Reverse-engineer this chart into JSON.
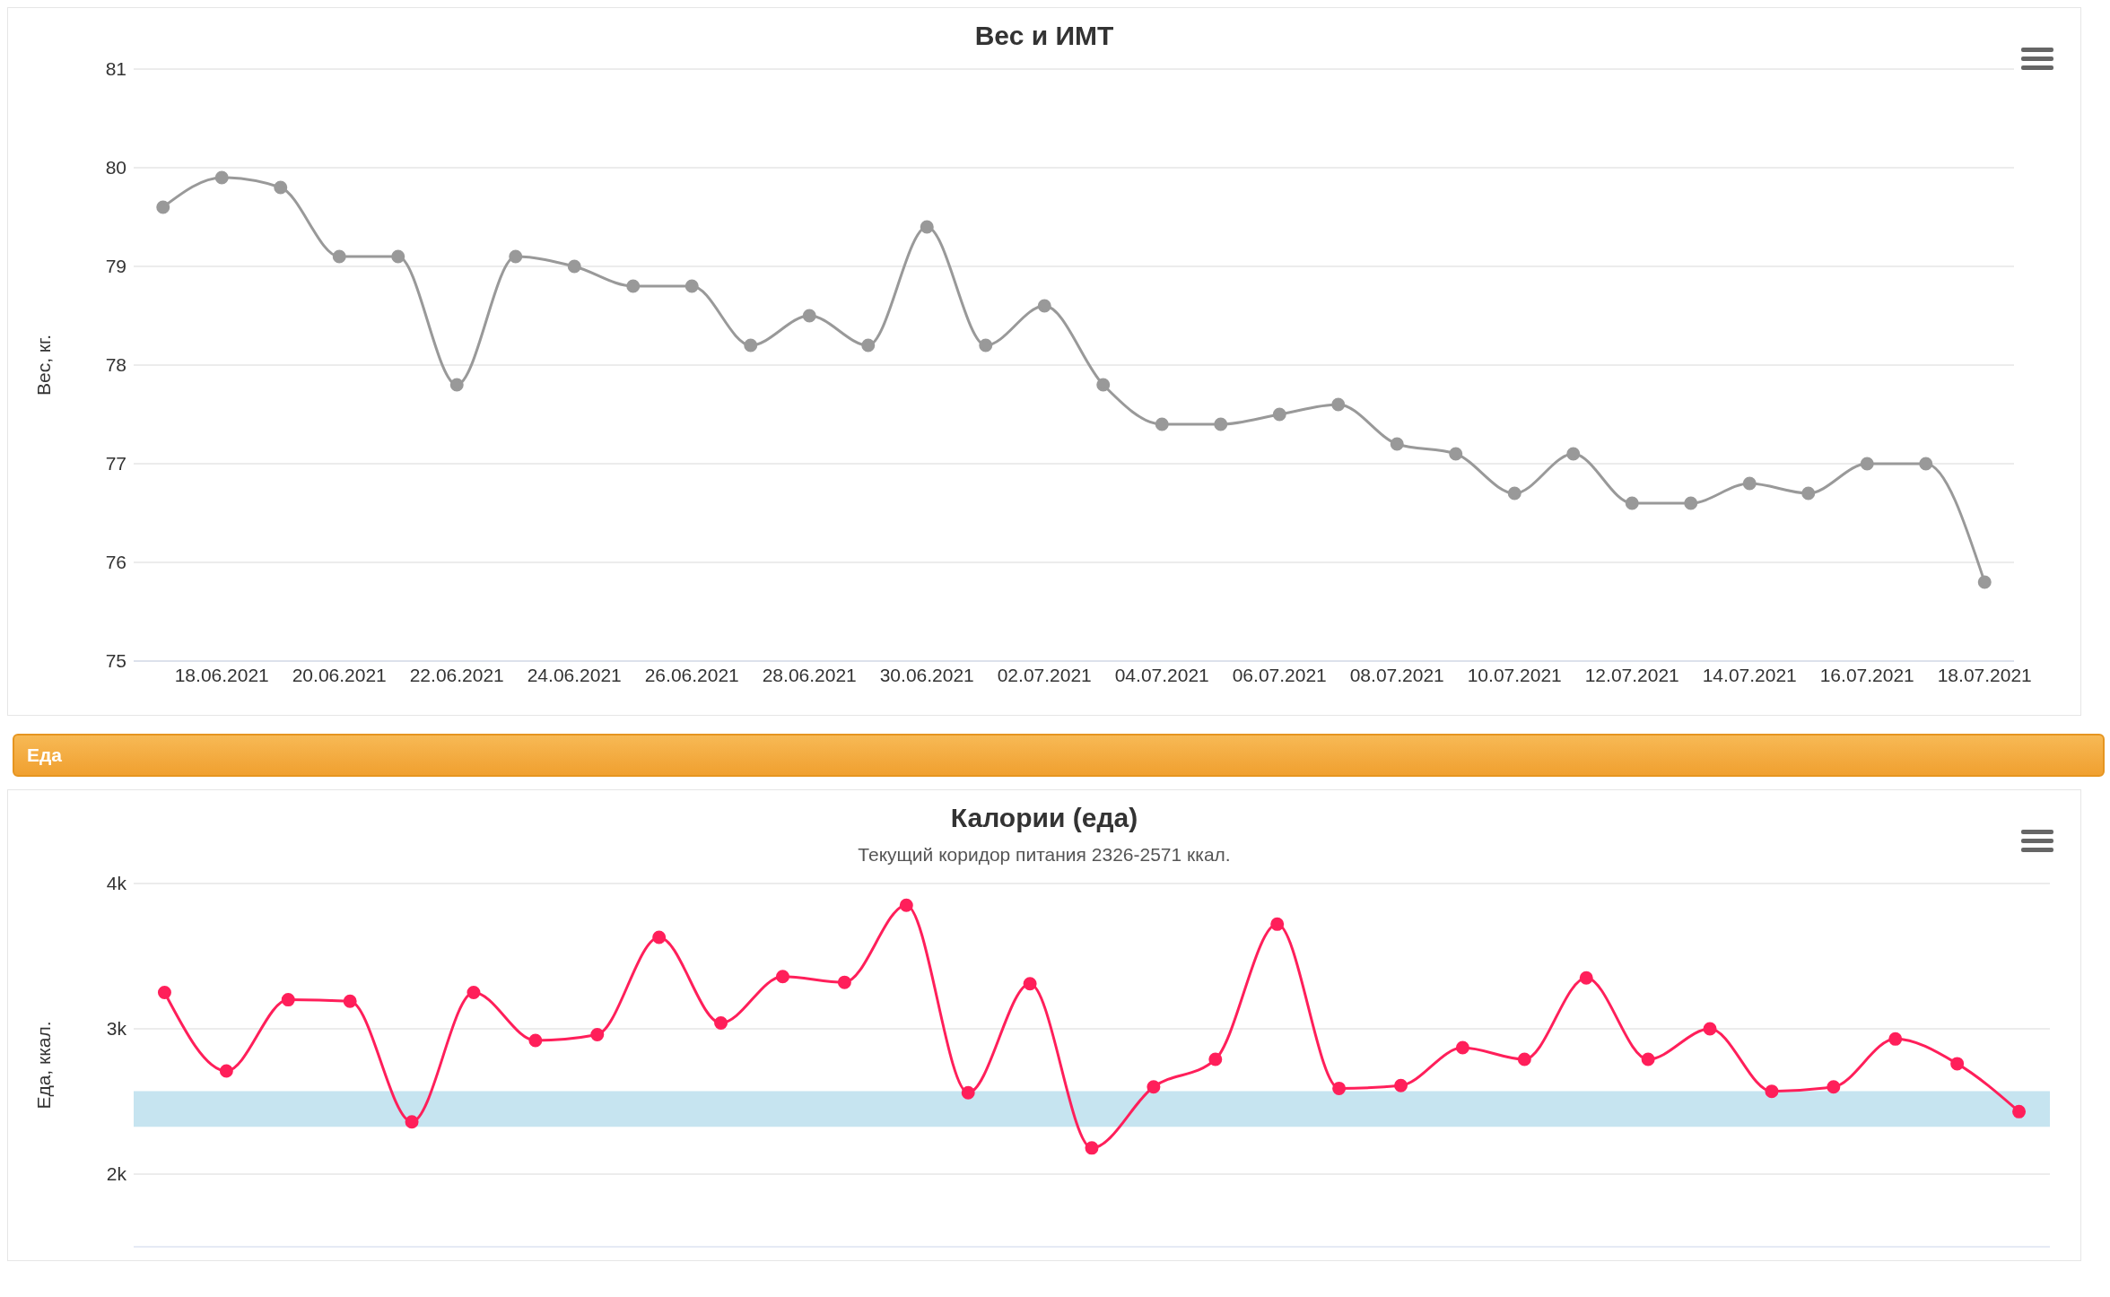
{
  "chart_data": [
    {
      "type": "line",
      "title": "Вес и ИМТ",
      "ylabel": "Вес, кг.",
      "categories": [
        null,
        "18.06.2021",
        null,
        "20.06.2021",
        null,
        "22.06.2021",
        null,
        "24.06.2021",
        null,
        "26.06.2021",
        null,
        "28.06.2021",
        null,
        "30.06.2021",
        null,
        "02.07.2021",
        null,
        "04.07.2021",
        null,
        "06.07.2021",
        null,
        "08.07.2021",
        null,
        "10.07.2021",
        null,
        "12.07.2021",
        null,
        "14.07.2021",
        null,
        "16.07.2021",
        null,
        "18.07.2021"
      ],
      "series": [
        {
          "color": "#999999",
          "values": [
            79.6,
            79.9,
            79.8,
            79.1,
            79.1,
            77.8,
            79.1,
            79.0,
            78.8,
            78.8,
            78.2,
            78.5,
            78.2,
            79.4,
            78.2,
            78.6,
            77.8,
            77.4,
            77.4,
            77.5,
            77.6,
            77.2,
            77.1,
            76.7,
            77.1,
            76.6,
            76.6,
            76.8,
            76.7,
            77.0,
            77.0,
            75.8
          ]
        }
      ],
      "ylim": [
        75,
        81
      ],
      "yticks": [
        75,
        76,
        77,
        78,
        79,
        80,
        81
      ],
      "grid": "y",
      "marker": "circle",
      "legend": false
    },
    {
      "type": "line",
      "title": "Калории (еда)",
      "subtitle": "Текущий коридор питания 2326-2571 ккал.",
      "ylabel": "Еда, ккал.",
      "annotations": [
        "Еда"
      ],
      "categories": [
        null,
        null,
        null,
        null,
        null,
        null,
        null,
        null,
        null,
        null,
        null,
        null,
        null,
        null,
        null,
        null,
        null,
        null,
        null,
        null,
        null,
        null,
        null,
        null,
        null,
        null,
        null,
        null,
        null,
        null,
        null
      ],
      "series": [
        {
          "color": "#ff1f5a",
          "values": [
            3250,
            2710,
            3200,
            3190,
            2360,
            3250,
            2920,
            2960,
            3630,
            3040,
            3360,
            3320,
            3850,
            2560,
            3310,
            2180,
            2600,
            2790,
            3720,
            2590,
            2610,
            2870,
            2790,
            3350,
            2790,
            3000,
            2570,
            2600,
            2930,
            2760,
            2430
          ]
        }
      ],
      "ylim": [
        1500,
        4000
      ],
      "yticks": [
        {
          "value": 2000,
          "label": "2k"
        },
        {
          "value": 3000,
          "label": "3k"
        },
        {
          "value": 4000,
          "label": "4k"
        }
      ],
      "bands": [
        {
          "axis": "y",
          "from": 2326,
          "to": 2571,
          "color": "#c6e4f0"
        }
      ],
      "tick_labels": "y",
      "grid": "y",
      "marker": "circle",
      "legend": false
    }
  ]
}
